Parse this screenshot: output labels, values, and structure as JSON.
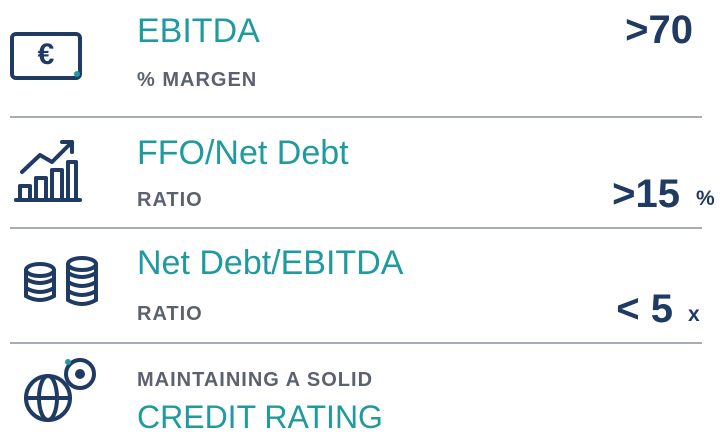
{
  "rows": [
    {
      "title": "EBITDA",
      "subtitle": "% MARGEN",
      "value": ">70"
    },
    {
      "title": "FFO/Net Debt",
      "subtitle": "RATIO",
      "value": ">15",
      "unit": "%"
    },
    {
      "title": "Net Debt/EBITDA",
      "subtitle": "RATIO",
      "value": "< 5",
      "unit": "x"
    },
    {
      "subtitle": "MAINTAINING A SOLID",
      "title": "CREDIT RATING"
    }
  ]
}
